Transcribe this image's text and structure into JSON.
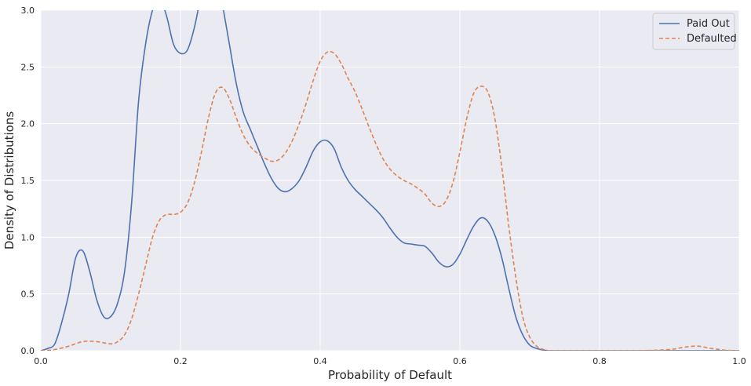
{
  "chart_data": {
    "type": "line",
    "title": "",
    "xlabel": "Probability of Default",
    "ylabel": "Density of Distributions",
    "xlim": [
      0.0,
      1.0
    ],
    "ylim": [
      0.0,
      3.0
    ],
    "x_ticks": [
      "0.0",
      "0.2",
      "0.4",
      "0.6",
      "0.8",
      "1.0"
    ],
    "y_ticks": [
      "0.0",
      "0.5",
      "1.0",
      "1.5",
      "2.0",
      "2.5",
      "3.0"
    ],
    "grid": true,
    "legend_position": "top-right",
    "background_color": "#eaeaf2",
    "series": [
      {
        "name": "Paid Out",
        "color": "#4c72b0",
        "style": "solid",
        "x": [
          0.0,
          0.01,
          0.02,
          0.03,
          0.04,
          0.05,
          0.06,
          0.07,
          0.08,
          0.09,
          0.1,
          0.11,
          0.12,
          0.13,
          0.14,
          0.15,
          0.16,
          0.17,
          0.18,
          0.19,
          0.2,
          0.21,
          0.22,
          0.23,
          0.24,
          0.25,
          0.26,
          0.27,
          0.28,
          0.29,
          0.3,
          0.31,
          0.32,
          0.33,
          0.34,
          0.35,
          0.36,
          0.37,
          0.38,
          0.39,
          0.4,
          0.41,
          0.42,
          0.43,
          0.44,
          0.45,
          0.46,
          0.47,
          0.48,
          0.49,
          0.5,
          0.51,
          0.52,
          0.53,
          0.54,
          0.55,
          0.56,
          0.57,
          0.58,
          0.59,
          0.6,
          0.61,
          0.62,
          0.63,
          0.64,
          0.65,
          0.66,
          0.67,
          0.68,
          0.69,
          0.7,
          0.71,
          0.72,
          0.73,
          0.74,
          0.75,
          0.8,
          0.9,
          1.0
        ],
        "y": [
          0.0,
          0.02,
          0.06,
          0.25,
          0.5,
          0.82,
          0.88,
          0.7,
          0.45,
          0.3,
          0.3,
          0.42,
          0.7,
          1.3,
          2.2,
          2.7,
          3.0,
          3.1,
          2.95,
          2.7,
          2.62,
          2.65,
          2.85,
          3.15,
          3.4,
          3.35,
          3.05,
          2.7,
          2.35,
          2.1,
          1.95,
          1.8,
          1.65,
          1.52,
          1.43,
          1.4,
          1.43,
          1.5,
          1.62,
          1.76,
          1.84,
          1.85,
          1.78,
          1.62,
          1.5,
          1.42,
          1.36,
          1.3,
          1.24,
          1.17,
          1.08,
          1.0,
          0.95,
          0.94,
          0.93,
          0.92,
          0.86,
          0.78,
          0.74,
          0.76,
          0.85,
          0.98,
          1.1,
          1.17,
          1.14,
          1.02,
          0.82,
          0.55,
          0.3,
          0.14,
          0.05,
          0.02,
          0.005,
          0.0,
          0.0,
          0.0,
          0.0,
          0.0,
          0.0
        ]
      },
      {
        "name": "Defaulted",
        "color": "#dd8452",
        "style": "dashed",
        "x": [
          0.0,
          0.02,
          0.04,
          0.06,
          0.08,
          0.1,
          0.11,
          0.12,
          0.13,
          0.14,
          0.15,
          0.16,
          0.17,
          0.18,
          0.19,
          0.2,
          0.21,
          0.22,
          0.23,
          0.24,
          0.25,
          0.26,
          0.27,
          0.28,
          0.29,
          0.3,
          0.31,
          0.32,
          0.33,
          0.34,
          0.35,
          0.36,
          0.37,
          0.38,
          0.39,
          0.4,
          0.41,
          0.42,
          0.43,
          0.44,
          0.45,
          0.46,
          0.47,
          0.48,
          0.49,
          0.5,
          0.51,
          0.52,
          0.53,
          0.54,
          0.55,
          0.56,
          0.57,
          0.58,
          0.59,
          0.6,
          0.61,
          0.62,
          0.63,
          0.64,
          0.65,
          0.66,
          0.67,
          0.68,
          0.69,
          0.7,
          0.71,
          0.72,
          0.73,
          0.75,
          0.8,
          0.85,
          0.9,
          0.92,
          0.94,
          0.96,
          0.98,
          1.0
        ],
        "y": [
          0.0,
          0.01,
          0.04,
          0.08,
          0.08,
          0.06,
          0.08,
          0.14,
          0.28,
          0.5,
          0.75,
          1.0,
          1.15,
          1.2,
          1.2,
          1.22,
          1.3,
          1.48,
          1.75,
          2.05,
          2.27,
          2.32,
          2.22,
          2.05,
          1.9,
          1.8,
          1.74,
          1.7,
          1.67,
          1.68,
          1.74,
          1.85,
          2.0,
          2.18,
          2.38,
          2.55,
          2.63,
          2.62,
          2.53,
          2.4,
          2.28,
          2.13,
          1.97,
          1.82,
          1.69,
          1.6,
          1.54,
          1.5,
          1.47,
          1.43,
          1.38,
          1.3,
          1.27,
          1.32,
          1.48,
          1.75,
          2.05,
          2.27,
          2.33,
          2.28,
          2.05,
          1.62,
          1.1,
          0.65,
          0.3,
          0.12,
          0.04,
          0.01,
          0.0,
          0.0,
          0.0,
          0.0,
          0.01,
          0.03,
          0.04,
          0.02,
          0.005,
          0.0
        ]
      }
    ]
  }
}
